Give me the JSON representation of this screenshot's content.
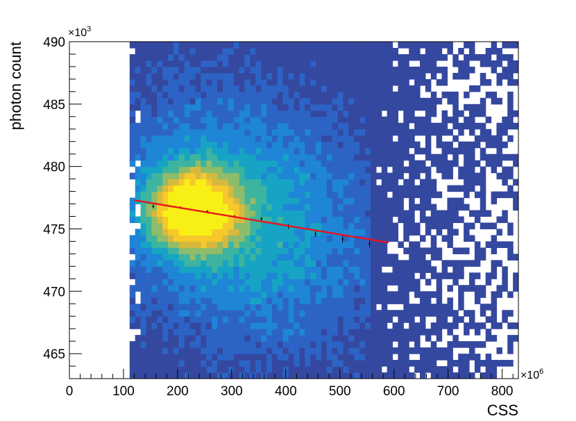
{
  "chart_data": {
    "type": "heatmap",
    "title": "",
    "xlabel": "CSS",
    "ylabel": "photon count",
    "x_exponent_label": "×10",
    "x_exponent": "6",
    "y_exponent_label": "×10",
    "y_exponent": "3",
    "xlim": [
      0,
      830
    ],
    "ylim": [
      463,
      490
    ],
    "x_ticks": [
      0,
      100,
      200,
      300,
      400,
      500,
      600,
      700,
      800
    ],
    "x_tick_labels": [
      "0",
      "100",
      "200",
      "300",
      "400",
      "500",
      "600",
      "700",
      "800"
    ],
    "y_ticks": [
      465,
      470,
      475,
      480,
      485,
      490
    ],
    "y_tick_labels": [
      "465",
      "470",
      "475",
      "480",
      "485",
      "490"
    ],
    "grid": false,
    "colormap": [
      "#35489f",
      "#2c64c6",
      "#1f85d6",
      "#17a4c4",
      "#3cb4a0",
      "#8ebc6a",
      "#d6b93c",
      "#f6c82c",
      "#f8f014"
    ],
    "density_peak": {
      "x": 230,
      "y": 476.5
    },
    "data_x_range": [
      112,
      830
    ],
    "profile_points": [
      {
        "x": 155,
        "y": 476.8,
        "err": 0.15
      },
      {
        "x": 205,
        "y": 476.7,
        "err": 0.1
      },
      {
        "x": 255,
        "y": 476.4,
        "err": 0.1
      },
      {
        "x": 305,
        "y": 476.0,
        "err": 0.1
      },
      {
        "x": 355,
        "y": 475.8,
        "err": 0.15
      },
      {
        "x": 405,
        "y": 475.2,
        "err": 0.2
      },
      {
        "x": 455,
        "y": 474.6,
        "err": 0.25
      },
      {
        "x": 505,
        "y": 474.2,
        "err": 0.3
      },
      {
        "x": 555,
        "y": 473.8,
        "err": 0.3
      }
    ],
    "fit_line": {
      "x": [
        120,
        590
      ],
      "y": [
        477.3,
        473.9
      ],
      "color": "#e8141c"
    }
  }
}
